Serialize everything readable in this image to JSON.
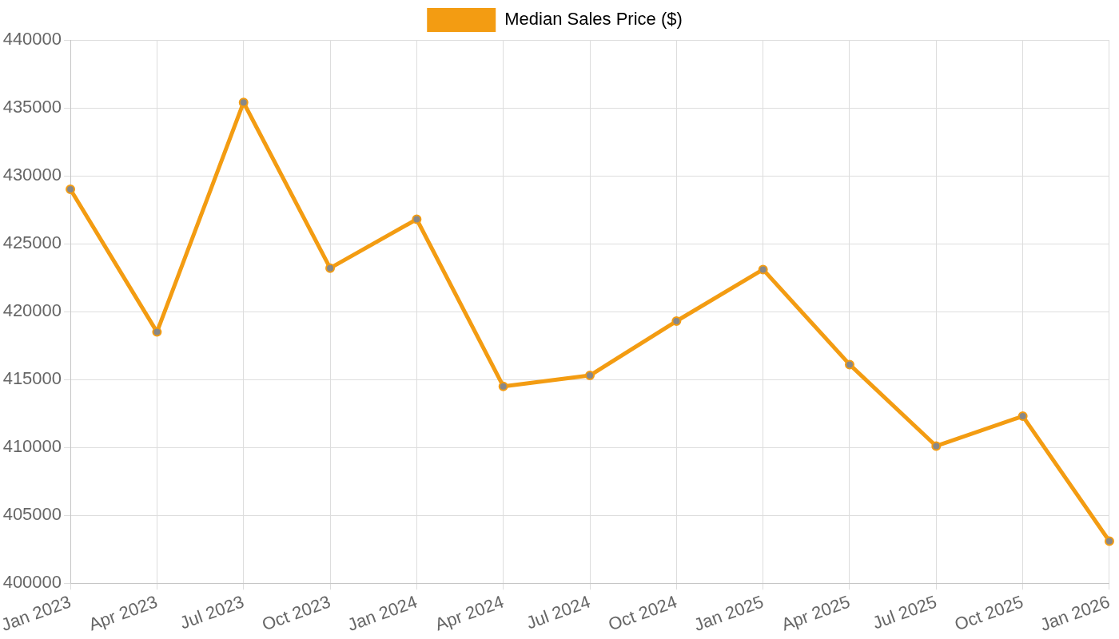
{
  "chart_data": {
    "type": "line",
    "categories": [
      "Jan 2023",
      "Apr 2023",
      "Jul 2023",
      "Oct 2023",
      "Jan 2024",
      "Apr 2024",
      "Jul 2024",
      "Oct 2024",
      "Jan 2025",
      "Apr 2025",
      "Jul 2025",
      "Oct 2025",
      "Jan 2026"
    ],
    "series": [
      {
        "name": "Median Sales Price ($)",
        "color": "#f39c12",
        "values": [
          429000,
          418500,
          435400,
          423200,
          426800,
          414500,
          415300,
          419300,
          423100,
          416100,
          410100,
          412300,
          403100
        ]
      }
    ],
    "ylim": [
      400000,
      440000
    ],
    "yticks": [
      400000,
      405000,
      410000,
      415000,
      420000,
      425000,
      430000,
      435000,
      440000
    ],
    "grid": true,
    "legend": "top",
    "marker": "circle",
    "line_style": "solid"
  }
}
